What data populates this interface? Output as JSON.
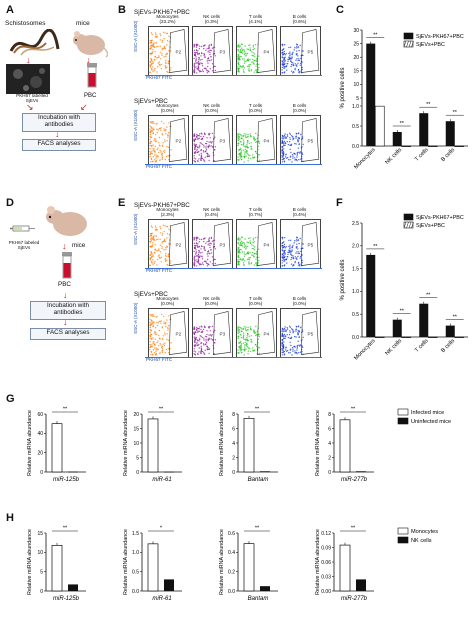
{
  "panels": {
    "A": {
      "letter": "A",
      "schistosomes": "Schistosomes",
      "mice": "mice",
      "pkh_label": "PKH67 labelled\nSjEVs",
      "pbc": "PBC",
      "incubation": "Incubation with\nantibodies",
      "facs": "FACS analyses"
    },
    "B": {
      "letter": "B",
      "top_title": "SjEVs-PKH67+PBC",
      "bottom_title": "SjEVs+PBC",
      "yaxis": "SSC-A (X1000)",
      "xaxis": "PKH67 FITC",
      "top_labels": [
        [
          "Monocytes",
          "(23.2%)"
        ],
        [
          "NK cells",
          "(0.3%)"
        ],
        [
          "T cells",
          "(4.1%)"
        ],
        [
          "B cells",
          "(0.6%)"
        ]
      ],
      "bottom_labels": [
        [
          "Monocytes",
          "(0.0%)"
        ],
        [
          "NK cells",
          "(0.0%)"
        ],
        [
          "T cells",
          "(0.0%)"
        ],
        [
          "B cells",
          "(0.0%)"
        ]
      ],
      "gates": [
        "P2",
        "P3",
        "P4",
        "P5"
      ]
    },
    "C": {
      "letter": "C",
      "ylabel": "% positive cells",
      "legend": [
        "SjEVs-PKH67+PBC",
        "SjEVs+PBC"
      ],
      "categories": [
        "Monocytes",
        "NK cells",
        "T cells",
        "B cells"
      ],
      "sig": [
        "**",
        "**",
        "**",
        "**"
      ]
    },
    "D": {
      "letter": "D",
      "pkh": "PKH67 labeled\nSjEVs",
      "mice": "mice",
      "pbc": "PBC",
      "incubation": "Incubation with\nantibodies",
      "facs": "FACS analyses"
    },
    "E": {
      "letter": "E",
      "top_title": "SjEVs-PKH67+PBC",
      "bottom_title": "SjEVs+PBC",
      "yaxis": "SSC-A (X1000)",
      "xaxis": "PKH67 FITC",
      "top_labels": [
        [
          "Monocytes",
          "(2.3%)"
        ],
        [
          "NK cells",
          "(0.4%)"
        ],
        [
          "T cells",
          "(0.7%)"
        ],
        [
          "B cells",
          "(0.4%)"
        ]
      ],
      "bottom_labels": [
        [
          "Monocytes",
          "(0.0%)"
        ],
        [
          "NK cells",
          "(0.0%)"
        ],
        [
          "T cells",
          "(0.0%)"
        ],
        [
          "B cells",
          "(0.0%)"
        ]
      ],
      "gates": [
        "P2",
        "P3",
        "P4",
        "P5"
      ]
    },
    "F": {
      "letter": "F",
      "ylabel": "% positive cells",
      "legend": [
        "SjEVs-PKH67+PBC",
        "SjEVs+PBC"
      ],
      "categories": [
        "Monocytes",
        "NK cells",
        "T cells",
        "B cells"
      ],
      "sig": [
        "**",
        "**",
        "**",
        "**"
      ]
    },
    "G": {
      "letter": "G",
      "ylabel": "Relative miRNA abundance",
      "legend": [
        "Infected mice",
        "Uninfected mice"
      ],
      "sig": [
        "**",
        "**",
        "**",
        "**"
      ]
    },
    "H": {
      "letter": "H",
      "ylabel": "Relative miRNA abundance",
      "legend": [
        "Monocytes",
        "NK cells"
      ],
      "sig": [
        "**",
        "*",
        "**",
        "**"
      ]
    }
  },
  "chart_data": [
    {
      "type": "bar",
      "panel": "C",
      "ylabel": "% positive cells",
      "categories": [
        "Monocytes",
        "NK cells",
        "T cells",
        "B cells"
      ],
      "series": [
        {
          "name": "SjEVs-PKH67+PBC",
          "values": [
            25.0,
            0.35,
            0.82,
            0.62
          ]
        },
        {
          "name": "SjEVs+PBC",
          "values": [
            2.0,
            0.0,
            0.0,
            0.0
          ]
        }
      ],
      "yticks": [
        "0.0",
        "0.5",
        "1.0",
        "5",
        "10",
        "15",
        "20",
        "25",
        "30"
      ],
      "broken_axis": true
    },
    {
      "type": "bar",
      "panel": "F",
      "ylabel": "% positive cells",
      "categories": [
        "Monocytes",
        "NK cells",
        "T cells",
        "B cells"
      ],
      "series": [
        {
          "name": "SjEVs-PKH67+PBC",
          "values": [
            1.8,
            0.38,
            0.73,
            0.25
          ]
        },
        {
          "name": "SjEVs+PBC",
          "values": [
            0.0,
            0.0,
            0.0,
            0.0
          ]
        }
      ],
      "yticks": [
        "0.0",
        "0.5",
        "1.0",
        "1.5",
        "2.0",
        "2.5"
      ],
      "ylim": [
        0,
        2.5
      ]
    },
    {
      "type": "bar",
      "panel": "G",
      "subplots": [
        {
          "xlabel": "miR-125b",
          "yticks": [
            "0",
            "20",
            "40",
            "60"
          ],
          "ylim": [
            0,
            60
          ],
          "series": [
            {
              "name": "Infected mice",
              "values": [
                50
              ]
            },
            {
              "name": "Uninfected mice",
              "values": [
                0.4
              ]
            }
          ]
        },
        {
          "xlabel": "miR-61",
          "yticks": [
            "0",
            "5",
            "10",
            "15",
            "20"
          ],
          "ylim": [
            0,
            20
          ],
          "series": [
            {
              "name": "Infected mice",
              "values": [
                18.3
              ]
            },
            {
              "name": "Uninfected mice",
              "values": [
                0.1
              ]
            }
          ]
        },
        {
          "xlabel": "Bantam",
          "yticks": [
            "0",
            "2",
            "4",
            "6",
            "8"
          ],
          "ylim": [
            0,
            8
          ],
          "series": [
            {
              "name": "Infected mice",
              "values": [
                7.4
              ]
            },
            {
              "name": "Uninfected mice",
              "values": [
                0.1
              ]
            }
          ]
        },
        {
          "xlabel": "miR-277b",
          "yticks": [
            "0",
            "2",
            "4",
            "6",
            "8"
          ],
          "ylim": [
            0,
            8
          ],
          "series": [
            {
              "name": "Infected mice",
              "values": [
                7.2
              ]
            },
            {
              "name": "Uninfected mice",
              "values": [
                0.1
              ]
            }
          ]
        }
      ]
    },
    {
      "type": "bar",
      "panel": "H",
      "subplots": [
        {
          "xlabel": "miR-125b",
          "yticks": [
            "0",
            "5",
            "10",
            "15"
          ],
          "ylim": [
            0,
            15
          ],
          "series": [
            {
              "name": "Monocytes",
              "values": [
                11.8
              ]
            },
            {
              "name": "NK cells",
              "values": [
                1.7
              ]
            }
          ]
        },
        {
          "xlabel": "miR-61",
          "yticks": [
            "0.0",
            "0.5",
            "1.0",
            "1.5"
          ],
          "ylim": [
            0,
            1.5
          ],
          "series": [
            {
              "name": "Monocytes",
              "values": [
                1.22
              ]
            },
            {
              "name": "NK cells",
              "values": [
                0.3
              ]
            }
          ]
        },
        {
          "xlabel": "Bantam",
          "yticks": [
            "0.0",
            "0.2",
            "0.4",
            "0.6"
          ],
          "ylim": [
            0,
            0.6
          ],
          "series": [
            {
              "name": "Monocytes",
              "values": [
                0.49
              ]
            },
            {
              "name": "NK cells",
              "values": [
                0.05
              ]
            }
          ]
        },
        {
          "xlabel": "miR-277b",
          "yticks": [
            "0.00",
            "0.03",
            "0.06",
            "0.09",
            "0.12"
          ],
          "ylim": [
            0,
            0.12
          ],
          "series": [
            {
              "name": "Monocytes",
              "values": [
                0.095
              ]
            },
            {
              "name": "NK cells",
              "values": [
                0.024
              ]
            }
          ]
        }
      ]
    }
  ]
}
